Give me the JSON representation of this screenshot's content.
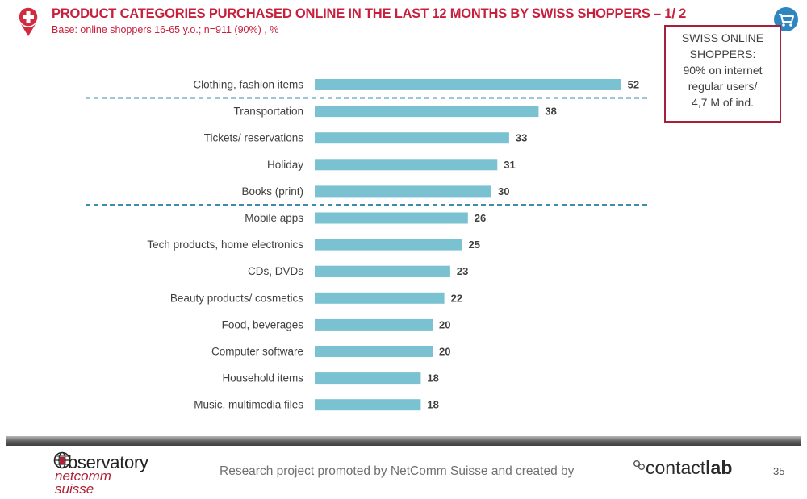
{
  "header": {
    "title": "PRODUCT CATEGORIES PURCHASED ONLINE IN THE LAST 12 MONTHS BY SWISS SHOPPERS – 1/ 2",
    "subtitle": "Base: online shoppers 16-65 y.o.; n=911 (90%) , %"
  },
  "callout": {
    "line1": "SWISS ONLINE",
    "line2": "SHOPPERS:",
    "line3": "90% on internet",
    "line4": "regular users/",
    "line5": "4,7 M of ind."
  },
  "footer": {
    "logo_word": "bservatory",
    "logo_line2": "netcomm",
    "logo_line3": "suisse",
    "promo_text": "Research project promoted by NetComm Suisse and created by",
    "brand_light": "contact",
    "brand_bold": "lab",
    "page_number": "35"
  },
  "colors": {
    "bar": "#7ac2d1",
    "title": "#c8203c",
    "divider": "#3f8dad",
    "label": "#404040"
  },
  "icons": [
    "swiss-flag-pin-icon",
    "shopping-cart-icon",
    "globe-icon",
    "contactlab-logo-icon"
  ],
  "chart_data": {
    "type": "bar",
    "orientation": "horizontal",
    "categories": [
      "Clothing, fashion items",
      "Transportation",
      "Tickets/ reservations",
      "Holiday",
      "Books (print)",
      "Mobile apps",
      "Tech products, home electronics",
      "CDs, DVDs",
      "Beauty products/ cosmetics",
      "Food, beverages",
      "Computer software",
      "Household items",
      "Music, multimedia files"
    ],
    "values": [
      52,
      38,
      33,
      31,
      30,
      26,
      25,
      23,
      22,
      20,
      20,
      18,
      18
    ],
    "dividers_after_index": [
      0,
      4
    ],
    "xlim": [
      0,
      55
    ],
    "grid": false,
    "legend": "none"
  }
}
